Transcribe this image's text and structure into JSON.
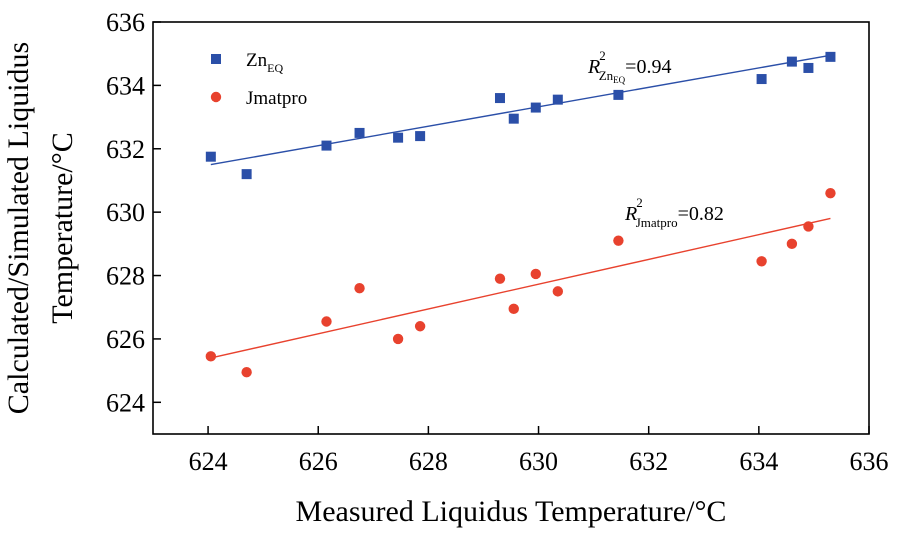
{
  "chart_data": {
    "type": "scatter",
    "xlabel": "Measured Liquidus Temperature/°C",
    "ylabel_line1": "Calculated/Simulated Liquidus",
    "ylabel_line2": "Temperature/°C",
    "xlim": [
      623,
      636
    ],
    "ylim": [
      623,
      636
    ],
    "x_ticks": [
      624,
      626,
      628,
      630,
      632,
      634,
      636
    ],
    "y_ticks": [
      624,
      626,
      628,
      630,
      632,
      634,
      636
    ],
    "grid": false,
    "legend_position": "top-left",
    "series": [
      {
        "name_main": "Zn",
        "name_sub": "EQ",
        "marker": "square",
        "color": "#2b4fa8",
        "x": [
          624.05,
          624.7,
          626.15,
          626.75,
          627.45,
          627.85,
          629.3,
          629.55,
          629.95,
          630.35,
          631.45,
          634.05,
          634.6,
          634.9,
          635.3
        ],
        "y": [
          631.75,
          631.2,
          632.1,
          632.5,
          632.35,
          632.4,
          633.6,
          632.95,
          633.3,
          633.55,
          633.7,
          634.2,
          634.75,
          634.55,
          634.9
        ],
        "fit": {
          "x": [
            624.05,
            635.3
          ],
          "y": [
            631.5,
            634.95
          ]
        },
        "r2_label": {
          "var": "R",
          "sup": "2",
          "sub_main": "Zn",
          "sub_sub": "EQ",
          "value": "=0.94"
        }
      },
      {
        "name_main": "Jmatpro",
        "name_sub": "",
        "marker": "circle",
        "color": "#e8422e",
        "x": [
          624.05,
          624.7,
          626.15,
          626.75,
          627.45,
          627.85,
          629.3,
          629.55,
          629.95,
          630.35,
          631.45,
          634.05,
          634.6,
          634.9,
          635.3
        ],
        "y": [
          625.45,
          624.95,
          626.55,
          627.6,
          626.0,
          626.4,
          627.9,
          626.95,
          628.05,
          627.5,
          629.1,
          628.45,
          629.0,
          629.55,
          630.6
        ],
        "fit": {
          "x": [
            624.05,
            635.3
          ],
          "y": [
            625.4,
            629.8
          ]
        },
        "r2_label": {
          "var": "R",
          "sup": "2",
          "sub_main": "Jmatpro",
          "sub_sub": "",
          "value": "=0.82"
        }
      }
    ]
  }
}
